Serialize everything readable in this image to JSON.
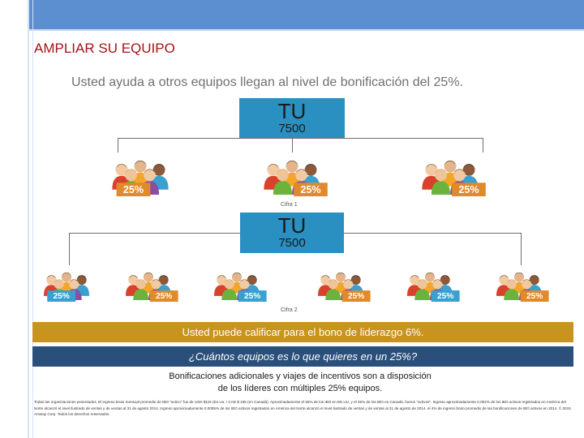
{
  "header": {
    "title": "AMPLIAR SU EQUIPO",
    "subtitle": "Usted ayuda a otros equipos llegan al nivel de bonificación del 25%."
  },
  "colors": {
    "accent_blue": "#5b8fd0",
    "tu_box": "#2a8fc1",
    "title_red": "#a01417",
    "gold_bar": "#c8941f",
    "navy_bar": "#2a4f7a",
    "badge_orange": "#e08a2c",
    "badge_blue": "#3aa0d0"
  },
  "figure1": {
    "tu_label": "TU",
    "points": "7500",
    "caption": "Cifra 1",
    "groups": [
      {
        "badge": "25%"
      },
      {
        "badge": "25%"
      },
      {
        "badge": "25%"
      }
    ]
  },
  "figure2": {
    "tu_label": "TU",
    "points": "7500",
    "caption": "Cifra 2",
    "groups": [
      {
        "badge": "25%"
      },
      {
        "badge": "25%"
      },
      {
        "badge": "25%"
      },
      {
        "badge": "25%"
      },
      {
        "badge": "25%"
      },
      {
        "badge": "25%"
      }
    ]
  },
  "bars": {
    "qualify": "Usted puede calificar para el bono de liderazgo 6%.",
    "question": "¿Cuántos equipos es lo que quieres en un 25%?"
  },
  "bonus_text": {
    "line1": "Bonificaciones adicionales y viajes de incentivos son a disposición",
    "line2": "de los líderes con múltiples 25% equipos."
  },
  "fine_print": "Todas las organizaciones pesentados. El ingreso bruto mensual promedio de IBO \"activo\" fue de USD $115 (Ee.Uu. / CAD $ 165 (en Canadá). Aproximadamente el 55% de los IBO en EE.UU. y el 45% de los IBO en Canadá, fueron \"activos\". Ingreso aproximadamente 0.004% de los IBO activos registrados en América del Norte alcanzó el nivel ilustrado de ventas y de ventas al 31 de agosto 2014. Ingreso aproximadamente 0.0055% de los IBO activos registrados en América del Norte alcanzó el nivel ilustrado de ventas y de ventas al 31 de agosto de 2014. el 4% de ingreso bruto promedio de las bonificaciones de IBO activos en 2014. © 2015 Amway Corp. Todos los derechos reservados."
}
